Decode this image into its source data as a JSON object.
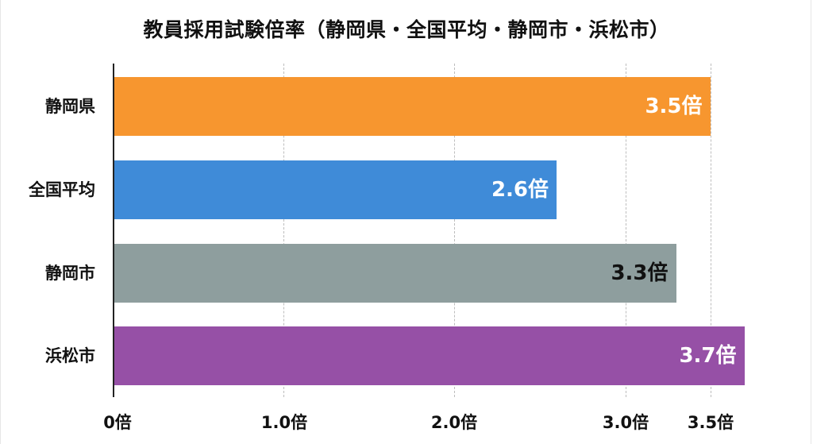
{
  "chart_data": {
    "type": "bar",
    "orientation": "horizontal",
    "title": "教員採用試験倍率（静岡県・全国平均・静岡市・浜松市）",
    "categories": [
      "静岡県",
      "全国平均",
      "静岡市",
      "浜松市"
    ],
    "values": [
      3.5,
      2.6,
      3.3,
      3.7
    ],
    "value_labels": [
      "3.5倍",
      "2.6倍",
      "3.3倍",
      "3.7倍"
    ],
    "colors": [
      "#f7962f",
      "#3f8bd8",
      "#8e9e9e",
      "#9650a6"
    ],
    "value_label_colors": [
      "#ffffff",
      "#ffffff",
      "#111111",
      "#ffffff"
    ],
    "xlabel": "",
    "ylabel": "",
    "xticks": [
      0,
      1.0,
      2.0,
      3.0,
      3.5
    ],
    "xtick_labels": [
      "0倍",
      "1.0倍",
      "2.0倍",
      "3.0倍",
      "3.5倍"
    ],
    "xlim": [
      0,
      3.75
    ],
    "grid": "vertical dashed",
    "legend": "none"
  }
}
